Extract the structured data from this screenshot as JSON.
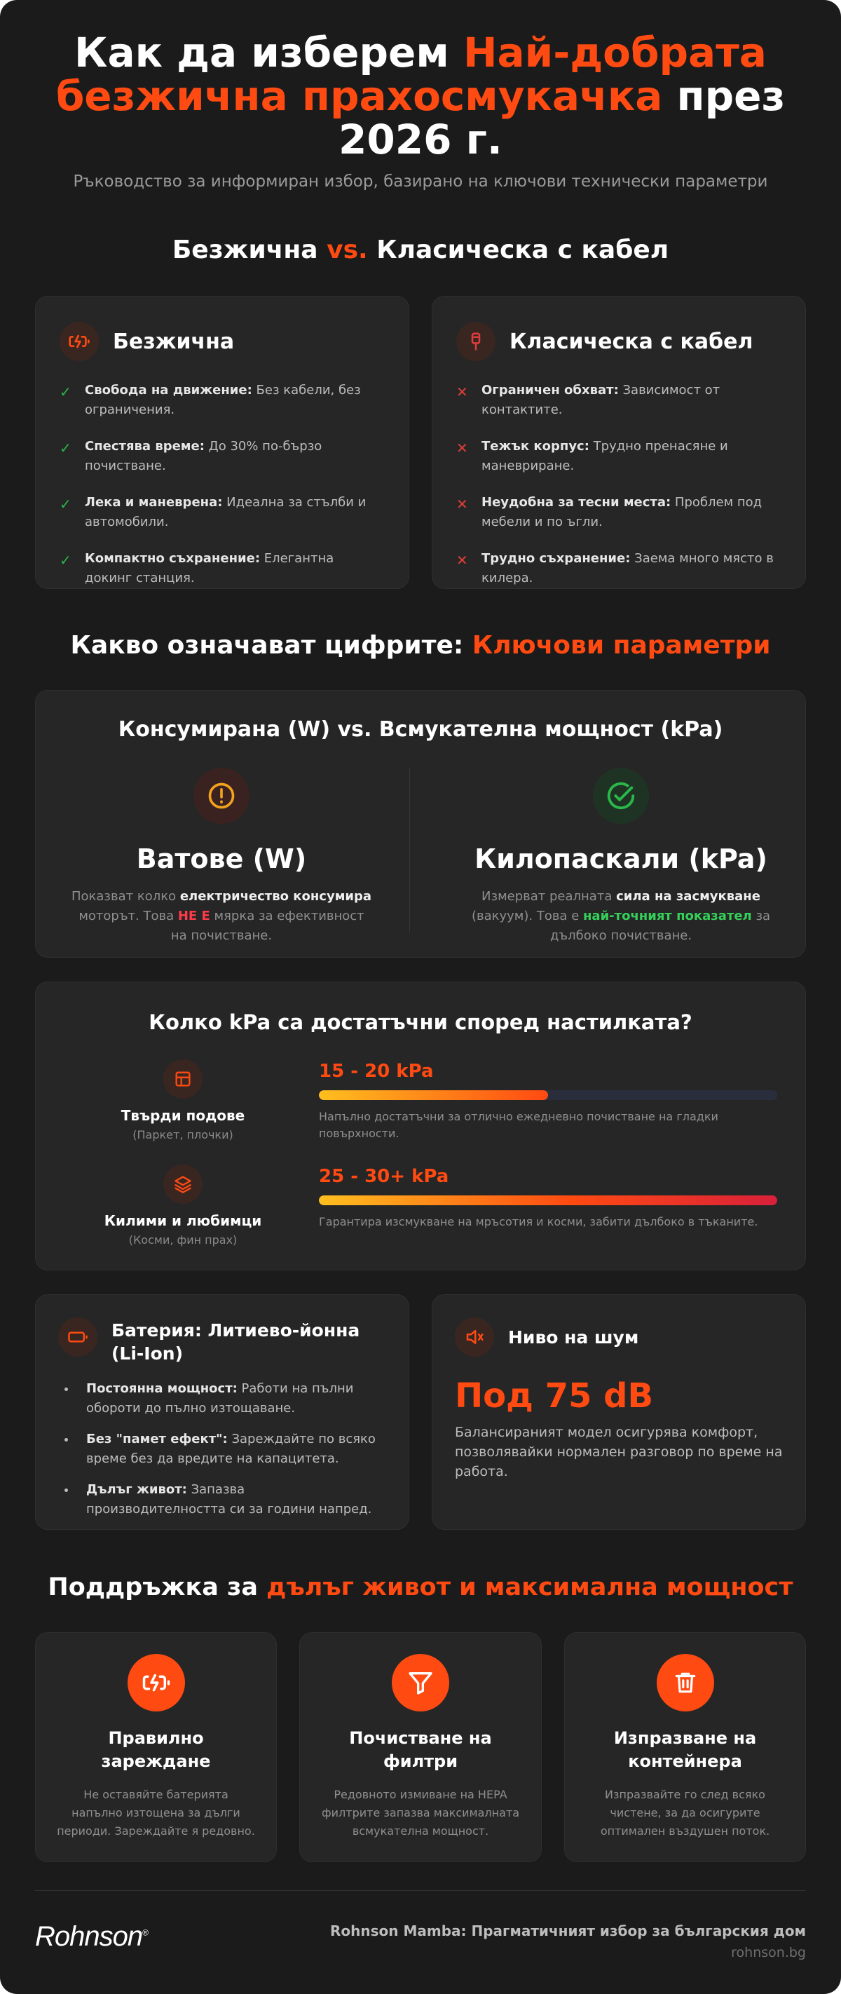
{
  "header": {
    "title_part1": "Как да изберем ",
    "title_highlight": "Най-добрата безжична прахосмукачка",
    "title_part2": " през 2026 г.",
    "subtitle": "Ръководство за информиран избор, базирано на ключови технически параметри"
  },
  "comparison": {
    "title_part1": "Безжична ",
    "title_vs": "vs.",
    "title_part2": " Класическа с кабел",
    "cordless": {
      "icon": "battery-charging-icon",
      "title": "Безжична",
      "items": [
        {
          "bold": "Свобода на движение:",
          "text": " Без кабели, без ограничения."
        },
        {
          "bold": "Спестява време:",
          "text": " До 30% по-бързо почистване."
        },
        {
          "bold": "Лека и маневрена:",
          "text": " Идеална за стълби и автомобили."
        },
        {
          "bold": "Компактно съхранение:",
          "text": " Елегантна докинг станция."
        }
      ]
    },
    "corded": {
      "icon": "plug-icon",
      "title": "Класическа с кабел",
      "items": [
        {
          "bold": "Ограничен обхват:",
          "text": " Зависимост от контактите."
        },
        {
          "bold": "Тежък корпус:",
          "text": " Трудно пренасяне и маневриране."
        },
        {
          "bold": "Неудобна за тесни места:",
          "text": " Проблем под мебели и по ъгли."
        },
        {
          "bold": "Трудно съхранение:",
          "text": " Заема много място в килера."
        }
      ]
    }
  },
  "parameters": {
    "title_part1": "Какво означават цифрите: ",
    "title_highlight": "Ключови параметри",
    "power_card": {
      "title": "Консумирана (W) vs. Всмукателна мощност (kPa)",
      "watts": {
        "icon": "alert-circle-icon",
        "title": "Ватове (W)",
        "t1": "Показват колко ",
        "b1": "електричество консумира",
        "t2": " моторът. Това ",
        "b2": "НЕ Е",
        "t3": " мярка за ефективност на почистване."
      },
      "kpa": {
        "icon": "check-circle-icon",
        "title": "Килопаскали (kPa)",
        "t1": "Измерват реалната ",
        "b1": "сила на засмукване",
        "t2": " (вакуум). Това е ",
        "b2": "най-точният показател",
        "t3": " за дълбоко почистване."
      }
    },
    "floor_card": {
      "title": "Колко kPa са достатъчни според настилката?",
      "rows": [
        {
          "icon": "layout-icon",
          "name": "Твърди подове",
          "note": "(Паркет, плочки)",
          "range": "15 - 20 kPa",
          "fill_fraction": 0.5,
          "desc": "Напълно достатъчни за отлично ежедневно почистване на гладки повърхности."
        },
        {
          "icon": "layers-icon",
          "name": "Килими и любимци",
          "note": "(Косми, фин прах)",
          "range": "25 - 30+ kPa",
          "fill_fraction": 1.0,
          "desc": "Гарантира изсмукване на мръсотия и косми, забити дълбоко в тъканите."
        }
      ]
    },
    "battery": {
      "icon": "battery-icon",
      "title": "Батерия: Литиево-йонна (Li-Ion)",
      "items": [
        {
          "bold": "Постоянна мощност:",
          "text": " Работи на пълни обороти до пълно изтощаване."
        },
        {
          "bold": "Без \"памет ефект\":",
          "text": " Зареждайте по всяко време без да вредите на капацитета."
        },
        {
          "bold": "Дълъг живот:",
          "text": " Запазва производителността си за години напред."
        }
      ]
    },
    "noise": {
      "icon": "volume-mute-icon",
      "title": "Ниво на шум",
      "value": "Под 75 dB",
      "desc": "Балансираният модел осигурява комфорт, позволявайки нормален разговор по време на работа."
    }
  },
  "maintenance": {
    "title_part1": "Поддръжка за ",
    "title_highlight": "дълъг живот и максимална мощност",
    "cards": [
      {
        "icon": "battery-charging-icon",
        "title": "Правилно зареждане",
        "desc": "Не оставяйте батерията напълно изтощена за дълги периоди. Зареждайте я редовно."
      },
      {
        "icon": "filter-icon",
        "title": "Почистване на филтри",
        "desc": "Редовното измиване на HEPA филтрите запазва максималната всмукателна мощност."
      },
      {
        "icon": "trash-icon",
        "title": "Изпразване на контейнера",
        "desc": "Изпразвайте го след всяко чистене, за да осигурите оптимален въздушен поток."
      }
    ]
  },
  "footer": {
    "logo": "Rohnson",
    "logo_mark": "®",
    "tagline": "Rohnson Mamba: Прагматичният избор за българския дом",
    "url": "rohnson.bg"
  },
  "colors": {
    "background": "#1b1b1b",
    "card": "#262626",
    "accent": "#ff4a12",
    "check": "#2ab84a",
    "cross": "#e23d3d"
  }
}
